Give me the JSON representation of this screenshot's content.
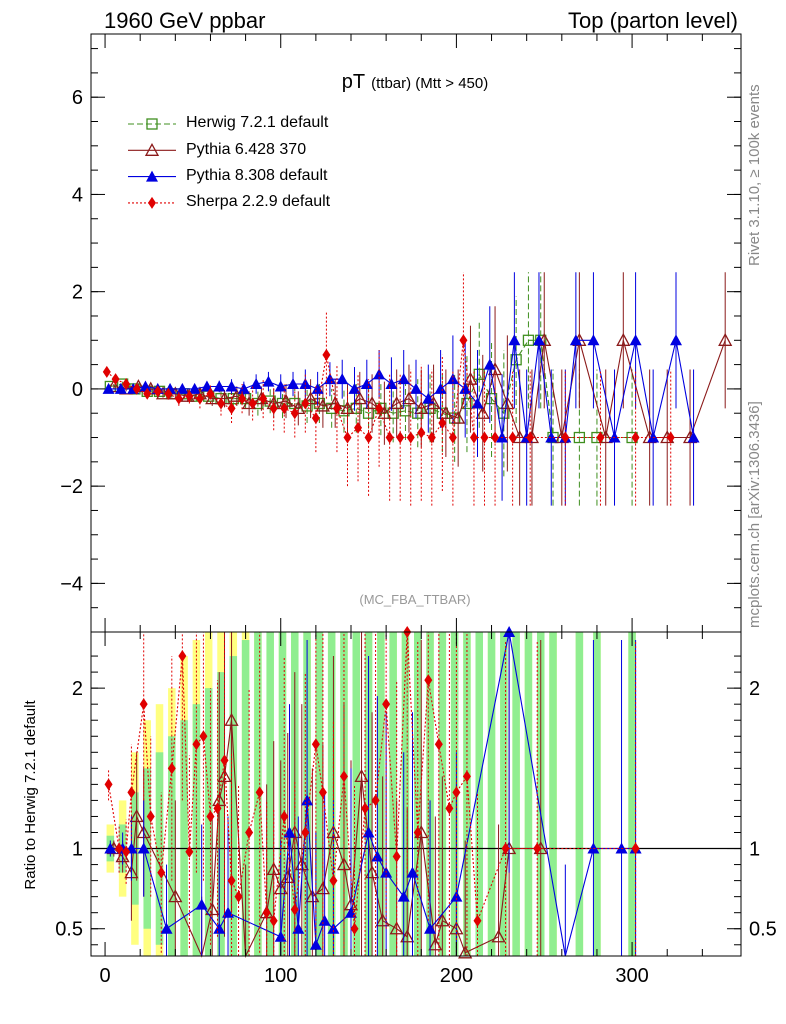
{
  "header": {
    "left": "1960 GeV ppbar",
    "right": "Top (parton level)"
  },
  "side_labels": {
    "rivet": "Rivet 3.1.10, ≥ 100k events",
    "mcplots": "mcplots.cern.ch [arXiv:1306.3436]"
  },
  "colors": {
    "herwig": "#3f8f1f",
    "pythia6": "#8b1a1a",
    "pythia8": "#0000e0",
    "sherpa": "#e00000",
    "band_yellow": "#ffff80",
    "band_green": "#90ee90"
  },
  "chart_data": [
    {
      "type": "line",
      "title": "pT",
      "title_sub": "(ttbar) (Mtt > 450)",
      "analysis": "(MC_FBA_TTBAR)",
      "xlim": [
        -8,
        362
      ],
      "ylim": [
        -5,
        7.3
      ],
      "yticks": [
        -4,
        -2,
        0,
        2,
        4,
        6
      ],
      "ytick_labels": [
        "−4",
        "−2",
        "0",
        "2",
        "4",
        "6"
      ],
      "legend": [
        "Herwig 7.2.1 default",
        "Pythia 6.428 370",
        "Pythia 8.308 default",
        "Sherpa 2.2.9 default"
      ],
      "series": [
        {
          "name": "Herwig 7.2.1 default",
          "color_key": "herwig",
          "marker": "square",
          "x": [
            3,
            10,
            17,
            24,
            31,
            38,
            45,
            52,
            59,
            66,
            73,
            80,
            87,
            94,
            101,
            108,
            115,
            122,
            129,
            136,
            143,
            150,
            157,
            164,
            171,
            178,
            185,
            192,
            199,
            206,
            213,
            220,
            227,
            234,
            241,
            248,
            255,
            270,
            280,
            300
          ],
          "y": [
            0.05,
            0.1,
            0.0,
            -0.05,
            -0.05,
            -0.1,
            -0.1,
            -0.15,
            -0.15,
            -0.2,
            -0.2,
            -0.2,
            -0.3,
            -0.25,
            -0.3,
            -0.3,
            -0.35,
            -0.3,
            -0.4,
            -0.45,
            -0.4,
            -0.5,
            -0.4,
            -0.5,
            -0.45,
            -0.5,
            -0.4,
            -0.5,
            -0.6,
            -0.3,
            0.3,
            -0.2,
            -0.5,
            0.6,
            1.0,
            1.0,
            -1.0,
            -1.0,
            -1.0,
            -1.0
          ],
          "err": [
            0.04,
            0.05,
            0.05,
            0.06,
            0.07,
            0.08,
            0.1,
            0.1,
            0.12,
            0.15,
            0.2,
            0.2,
            0.25,
            0.25,
            0.3,
            0.3,
            0.35,
            0.4,
            0.4,
            0.45,
            0.5,
            0.5,
            0.55,
            0.6,
            0.6,
            0.7,
            0.7,
            0.8,
            0.9,
            1.0,
            1.1,
            1.2,
            1.3,
            1.3,
            1.4,
            1.4,
            1.4,
            1.4,
            1.4,
            1.4
          ]
        },
        {
          "name": "Pythia 6.428 370",
          "color_key": "pythia6",
          "marker": "triangle-open",
          "x": [
            5,
            12,
            19,
            26,
            33,
            40,
            47,
            54,
            61,
            68,
            75,
            82,
            89,
            96,
            103,
            110,
            117,
            124,
            131,
            138,
            145,
            152,
            159,
            166,
            173,
            180,
            187,
            194,
            201,
            208,
            215,
            222,
            229,
            236,
            243,
            250,
            260,
            270,
            285,
            295,
            310,
            320,
            333,
            353
          ],
          "y": [
            0.05,
            0.0,
            0.05,
            0.0,
            -0.1,
            -0.1,
            -0.15,
            -0.1,
            -0.2,
            -0.2,
            -0.15,
            -0.3,
            -0.2,
            -0.3,
            -0.25,
            -0.4,
            -0.2,
            -0.35,
            -0.3,
            -0.4,
            -0.2,
            -0.3,
            -0.5,
            -0.3,
            -0.2,
            -0.4,
            -0.3,
            -0.5,
            -0.6,
            0.2,
            -0.5,
            0.4,
            -0.3,
            -1.0,
            -1.0,
            1.0,
            -1.0,
            1.0,
            -1.0,
            1.0,
            -1.0,
            -1.0,
            -1.0,
            1.0
          ],
          "err": [
            0.05,
            0.05,
            0.06,
            0.07,
            0.08,
            0.1,
            0.12,
            0.12,
            0.15,
            0.18,
            0.2,
            0.25,
            0.25,
            0.3,
            0.35,
            0.35,
            0.4,
            0.45,
            0.5,
            0.5,
            0.55,
            0.6,
            0.65,
            0.7,
            0.7,
            0.8,
            0.8,
            0.9,
            1.0,
            1.1,
            1.2,
            1.3,
            1.4,
            1.4,
            1.4,
            1.4,
            1.4,
            1.4,
            1.4,
            1.4,
            1.4,
            1.4,
            1.4,
            1.4
          ]
        },
        {
          "name": "Pythia 8.308 default",
          "color_key": "pythia8",
          "marker": "triangle-filled",
          "x": [
            2,
            9,
            16,
            23,
            30,
            37,
            44,
            51,
            58,
            65,
            72,
            79,
            86,
            93,
            100,
            107,
            114,
            121,
            128,
            135,
            142,
            149,
            156,
            163,
            170,
            177,
            184,
            191,
            198,
            205,
            212,
            219,
            226,
            233,
            240,
            247,
            254,
            262,
            268,
            278,
            290,
            302,
            312,
            325,
            335
          ],
          "y": [
            0.0,
            0.0,
            0.0,
            0.05,
            0.0,
            0.0,
            0.0,
            0.0,
            0.05,
            0.05,
            0.05,
            0.0,
            0.1,
            0.15,
            0.05,
            0.1,
            0.1,
            0.0,
            0.2,
            0.2,
            0.0,
            0.1,
            0.3,
            0.1,
            0.2,
            0.0,
            -0.2,
            0.0,
            0.2,
            0.0,
            -0.3,
            0.5,
            -1.0,
            1.0,
            -1.0,
            1.0,
            -1.0,
            -1.0,
            1.0,
            1.0,
            -1.0,
            1.0,
            -1.0,
            1.0,
            -1.0
          ],
          "err": [
            0.04,
            0.04,
            0.05,
            0.06,
            0.06,
            0.07,
            0.08,
            0.1,
            0.1,
            0.12,
            0.15,
            0.15,
            0.2,
            0.2,
            0.25,
            0.25,
            0.3,
            0.35,
            0.35,
            0.4,
            0.45,
            0.5,
            0.5,
            0.55,
            0.6,
            0.6,
            0.7,
            0.8,
            0.9,
            1.0,
            1.1,
            1.2,
            1.3,
            1.4,
            1.4,
            1.4,
            1.4,
            1.4,
            1.4,
            1.4,
            1.4,
            1.4,
            1.4,
            1.4,
            1.4
          ]
        },
        {
          "name": "Sherpa 2.2.9 default",
          "color_key": "sherpa",
          "marker": "diamond",
          "x": [
            1,
            6,
            12,
            18,
            24,
            30,
            36,
            42,
            48,
            54,
            60,
            66,
            72,
            78,
            84,
            90,
            96,
            102,
            108,
            114,
            120,
            126,
            132,
            138,
            144,
            150,
            156,
            162,
            168,
            174,
            180,
            186,
            192,
            198,
            204,
            210,
            216,
            222,
            232,
            242,
            262,
            282,
            302,
            322
          ],
          "y": [
            0.35,
            0.2,
            0.1,
            0.0,
            -0.1,
            -0.05,
            -0.1,
            -0.2,
            -0.15,
            -0.2,
            -0.1,
            -0.3,
            -0.4,
            -0.2,
            -0.3,
            -0.2,
            -0.4,
            -0.4,
            -0.5,
            -0.3,
            -0.6,
            0.7,
            -0.4,
            -1.0,
            -0.8,
            -1.0,
            -0.4,
            -1.0,
            -1.0,
            -1.0,
            -0.9,
            -1.0,
            -0.7,
            -1.0,
            1.0,
            -1.0,
            -1.0,
            -1.0,
            -1.0,
            -1.0,
            -1.0,
            -1.0,
            -1.0,
            -1.0
          ],
          "err": [
            0.05,
            0.06,
            0.07,
            0.08,
            0.1,
            0.1,
            0.12,
            0.15,
            0.15,
            0.2,
            0.2,
            0.25,
            0.3,
            0.3,
            0.35,
            0.4,
            0.45,
            0.5,
            0.5,
            0.6,
            0.7,
            0.9,
            0.9,
            1.0,
            1.1,
            1.2,
            1.2,
            1.3,
            1.3,
            1.4,
            1.4,
            1.4,
            1.4,
            1.4,
            1.4,
            1.4,
            1.4,
            1.4,
            1.4,
            1.4,
            1.4,
            1.4,
            1.4,
            1.4
          ]
        }
      ]
    },
    {
      "type": "line",
      "ylabel": "Ratio to Herwig 7.2.1 default",
      "xlim": [
        -8,
        362
      ],
      "ylim": [
        0.33,
        2.35
      ],
      "yticks": [
        0.5,
        1,
        2
      ],
      "ytick_labels": [
        "0.5",
        "1",
        "2"
      ],
      "xticks": [
        0,
        100,
        200,
        300
      ],
      "xtick_labels": [
        "0",
        "100",
        "200",
        "300"
      ],
      "reference": 1,
      "band": {
        "x": [
          3,
          10,
          17,
          24,
          31,
          38,
          45,
          52,
          59,
          66,
          73,
          80,
          87,
          94,
          101,
          108,
          115,
          122,
          129,
          136,
          143,
          150,
          157,
          164,
          171,
          178,
          185,
          192,
          199,
          206,
          213,
          220,
          227,
          234,
          241,
          248,
          255,
          270,
          280,
          300
        ],
        "yellow_half": [
          0.15,
          0.3,
          0.6,
          0.8,
          0.9,
          1.0,
          1.2,
          1.3,
          1.4,
          1.5,
          1.6,
          1.6,
          1.6,
          1.6,
          1.6,
          1.6,
          1.6,
          1.6,
          1.6,
          1.6,
          1.6,
          1.6,
          1.6,
          1.6,
          1.6,
          1.6,
          1.6,
          1.6,
          1.6,
          1.6,
          1.6,
          1.6,
          1.6,
          1.6,
          1.6,
          1.6,
          1.6,
          1.6,
          1.6,
          1.6
        ],
        "green_half": [
          0.08,
          0.15,
          0.35,
          0.5,
          0.6,
          0.7,
          0.8,
          0.9,
          1.0,
          1.1,
          1.2,
          1.3,
          1.4,
          1.4,
          1.5,
          1.5,
          1.5,
          1.5,
          1.5,
          1.5,
          1.5,
          1.5,
          1.5,
          1.5,
          1.5,
          1.5,
          1.5,
          1.5,
          1.5,
          1.5,
          1.5,
          1.5,
          1.5,
          1.5,
          1.5,
          1.5,
          1.5,
          1.5,
          1.5,
          1.5
        ]
      },
      "series": [
        {
          "name": "Pythia 6.428 370",
          "color_key": "pythia6",
          "marker": "triangle-open",
          "x": [
            5,
            10,
            15,
            18,
            22,
            40,
            55,
            61,
            65,
            68,
            72,
            80,
            92,
            96,
            100,
            104,
            108,
            112,
            118,
            124,
            130,
            136,
            140,
            146,
            152,
            158,
            166,
            172,
            180,
            188,
            192,
            200,
            205,
            224,
            230,
            248
          ],
          "y": [
            1.0,
            0.95,
            0.85,
            1.2,
            1.1,
            0.7,
            0.3,
            0.62,
            1.3,
            1.45,
            1.8,
            0.3,
            0.6,
            0.87,
            0.75,
            0.82,
            1.1,
            0.9,
            0.7,
            0.75,
            1.1,
            0.9,
            0.65,
            1.45,
            0.85,
            0.55,
            0.5,
            0.45,
            1.1,
            0.4,
            0.55,
            0.5,
            0.35,
            0.45,
            1.0,
            1.0
          ],
          "err": [
            0.05,
            0.1,
            0.3,
            0.4,
            0.4,
            0.6,
            0.4,
            0.6,
            0.8,
            1.0,
            1.2,
            0.6,
            0.8,
            0.8,
            0.8,
            0.9,
            1.0,
            1.0,
            0.8,
            0.9,
            1.1,
            1.0,
            0.9,
            1.2,
            1.0,
            0.9,
            0.8,
            0.8,
            1.2,
            0.8,
            0.9,
            0.9,
            0.7,
            0.7,
            1.3,
            1.3
          ]
        },
        {
          "name": "Pythia 8.308 default",
          "color_key": "pythia8",
          "marker": "triangle-filled",
          "x": [
            3,
            10,
            15,
            22,
            35,
            55,
            65,
            70,
            100,
            105,
            110,
            115,
            120,
            125,
            130,
            140,
            150,
            155,
            160,
            170,
            175,
            185,
            200,
            230,
            262,
            278,
            294,
            302
          ],
          "y": [
            1.0,
            1.0,
            1.0,
            1.0,
            0.5,
            0.65,
            0.5,
            0.6,
            0.45,
            1.1,
            0.5,
            1.3,
            0.4,
            0.55,
            0.5,
            0.6,
            1.1,
            0.95,
            0.85,
            0.7,
            0.85,
            0.5,
            0.7,
            2.35,
            0.3,
            1.0,
            1.0,
            1.0
          ],
          "err": [
            0.05,
            0.1,
            0.2,
            0.3,
            0.4,
            0.5,
            0.5,
            0.6,
            0.6,
            0.8,
            0.7,
            1.0,
            0.7,
            0.8,
            0.8,
            0.9,
            1.1,
            1.0,
            1.0,
            0.9,
            1.0,
            0.8,
            0.9,
            1.5,
            0.6,
            1.3,
            1.3,
            1.3
          ]
        },
        {
          "name": "Sherpa 2.2.9 default",
          "color_key": "sherpa",
          "marker": "diamond",
          "x": [
            2,
            8,
            12,
            15,
            22,
            26,
            32,
            38,
            44,
            48,
            52,
            56,
            60,
            64,
            68,
            72,
            76,
            82,
            88,
            92,
            96,
            102,
            108,
            114,
            120,
            124,
            130,
            136,
            142,
            148,
            154,
            160,
            166,
            172,
            178,
            184,
            190,
            196,
            200,
            206,
            212,
            228,
            246,
            302
          ],
          "y": [
            1.4,
            1.0,
            0.98,
            1.35,
            1.9,
            1.2,
            0.85,
            1.5,
            2.2,
            0.98,
            1.65,
            1.7,
            1.2,
            1.25,
            1.55,
            0.8,
            0.7,
            1.1,
            1.35,
            0.6,
            0.55,
            1.2,
            0.62,
            1.1,
            1.65,
            1.35,
            0.8,
            1.45,
            0.5,
            1.25,
            1.3,
            1.9,
            0.95,
            2.35,
            1.1,
            2.05,
            1.65,
            1.25,
            1.35,
            1.45,
            0.55,
            1.0,
            1.0,
            1.0
          ],
          "err": [
            0.1,
            0.15,
            0.2,
            0.3,
            0.6,
            0.5,
            0.5,
            0.7,
            0.9,
            0.6,
            0.8,
            0.9,
            0.8,
            0.8,
            1.0,
            0.8,
            0.7,
            0.9,
            1.0,
            0.7,
            0.7,
            1.0,
            0.8,
            1.0,
            1.2,
            1.1,
            1.0,
            1.2,
            0.9,
            1.2,
            1.2,
            1.4,
            1.1,
            1.5,
            1.2,
            1.5,
            1.4,
            1.2,
            1.2,
            1.3,
            0.8,
            1.3,
            1.3,
            1.3
          ]
        }
      ]
    }
  ]
}
